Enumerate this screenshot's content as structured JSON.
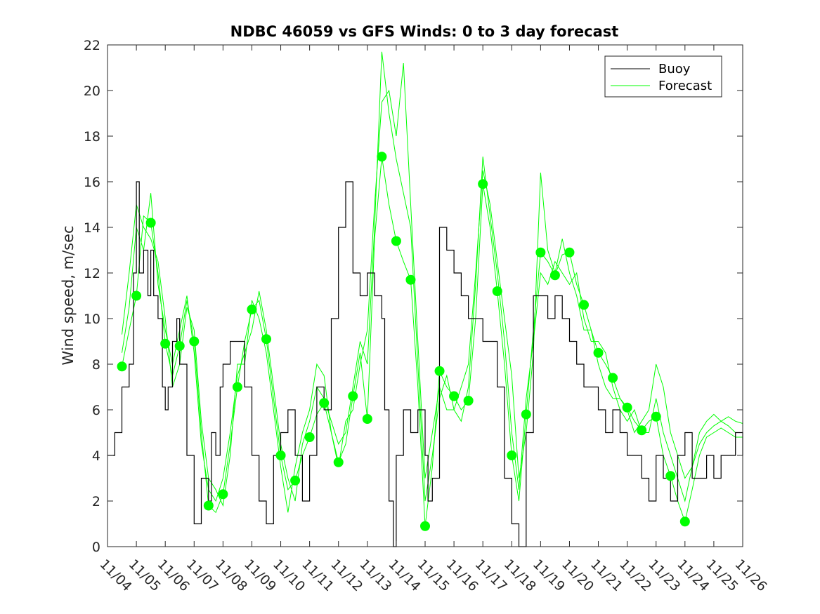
{
  "chart_data": {
    "type": "line",
    "title": "NDBC 46059 vs GFS Winds: 0 to 3 day forecast",
    "xlabel": "",
    "ylabel": "Wind speed, m/sec",
    "xlim": [
      0,
      22
    ],
    "ylim": [
      0,
      22
    ],
    "x_tick_labels": [
      "11/04",
      "11/05",
      "11/06",
      "11/07",
      "11/08",
      "11/09",
      "11/10",
      "11/11",
      "11/12",
      "11/13",
      "11/14",
      "11/15",
      "11/16",
      "11/17",
      "11/18",
      "11/19",
      "11/20",
      "11/21",
      "11/22",
      "11/23",
      "11/24",
      "11/25",
      "11/26"
    ],
    "y_ticks": [
      0,
      2,
      4,
      6,
      8,
      10,
      12,
      14,
      16,
      18,
      20,
      22
    ],
    "legend": {
      "position": "top-right",
      "entries": [
        "Buoy",
        "Forecast"
      ]
    },
    "colors": {
      "buoy": "#000000",
      "forecast": "#00ff00",
      "axis": "#262626"
    },
    "series": [
      {
        "name": "Buoy",
        "color": "#000000",
        "x": [
          0.0,
          0.25,
          0.5,
          0.75,
          0.9,
          1.0,
          1.1,
          1.25,
          1.4,
          1.5,
          1.6,
          1.75,
          1.9,
          2.0,
          2.1,
          2.25,
          2.4,
          2.5,
          2.75,
          3.0,
          3.25,
          3.5,
          3.6,
          3.75,
          3.9,
          4.0,
          4.25,
          4.5,
          4.75,
          5.0,
          5.25,
          5.5,
          5.75,
          6.0,
          6.25,
          6.5,
          6.75,
          7.0,
          7.25,
          7.5,
          7.75,
          8.0,
          8.25,
          8.5,
          8.75,
          9.0,
          9.25,
          9.5,
          9.6,
          9.75,
          9.9,
          10.0,
          10.25,
          10.5,
          10.75,
          11.0,
          11.1,
          11.25,
          11.5,
          11.75,
          12.0,
          12.25,
          12.5,
          12.75,
          13.0,
          13.25,
          13.5,
          13.75,
          14.0,
          14.25,
          14.5,
          14.75,
          15.0,
          15.25,
          15.5,
          15.75,
          16.0,
          16.25,
          16.5,
          16.75,
          17.0,
          17.25,
          17.5,
          17.75,
          18.0,
          18.25,
          18.5,
          18.75,
          19.0,
          19.25,
          19.5,
          19.75,
          20.0,
          20.25,
          20.5,
          20.75,
          21.0,
          21.25,
          21.5,
          21.75,
          22.0
        ],
        "y": [
          4,
          5,
          7,
          8,
          12,
          16,
          12,
          13,
          11,
          13,
          11,
          10,
          7,
          6,
          7,
          9,
          10,
          8,
          4,
          1,
          3,
          2,
          5,
          4,
          7,
          8,
          9,
          9,
          7,
          4,
          2,
          1,
          4,
          5,
          6,
          4,
          2,
          4,
          7,
          6,
          10,
          14,
          16,
          12,
          11,
          12,
          11,
          10,
          6,
          2,
          0,
          4,
          6,
          5,
          6,
          4,
          2,
          3,
          14,
          13,
          12,
          11,
          10,
          10,
          9,
          9,
          7,
          3,
          1,
          0,
          5,
          11,
          11,
          10,
          11,
          10,
          9,
          8,
          7,
          7,
          6,
          5,
          6,
          5,
          4,
          4,
          3,
          2,
          4,
          3,
          2,
          4,
          5,
          3,
          3,
          4,
          3,
          4,
          4,
          5,
          4
        ]
      },
      {
        "name": "Forecast",
        "color": "#00ff00",
        "markers": [
          {
            "x": 0.5,
            "y": 7.9
          },
          {
            "x": 1.0,
            "y": 11.0
          },
          {
            "x": 1.5,
            "y": 14.2
          },
          {
            "x": 2.0,
            "y": 8.9
          },
          {
            "x": 2.5,
            "y": 8.8
          },
          {
            "x": 3.0,
            "y": 9.0
          },
          {
            "x": 3.5,
            "y": 1.8
          },
          {
            "x": 4.0,
            "y": 2.3
          },
          {
            "x": 4.5,
            "y": 7.0
          },
          {
            "x": 5.0,
            "y": 10.4
          },
          {
            "x": 5.5,
            "y": 9.1
          },
          {
            "x": 6.0,
            "y": 4.0
          },
          {
            "x": 6.5,
            "y": 2.9
          },
          {
            "x": 7.0,
            "y": 4.8
          },
          {
            "x": 7.5,
            "y": 6.3
          },
          {
            "x": 8.0,
            "y": 3.7
          },
          {
            "x": 8.5,
            "y": 6.6
          },
          {
            "x": 9.0,
            "y": 5.6
          },
          {
            "x": 9.5,
            "y": 17.1
          },
          {
            "x": 10.0,
            "y": 13.4
          },
          {
            "x": 10.5,
            "y": 11.7
          },
          {
            "x": 11.0,
            "y": 0.9
          },
          {
            "x": 11.5,
            "y": 7.7
          },
          {
            "x": 12.0,
            "y": 6.6
          },
          {
            "x": 12.5,
            "y": 6.4
          },
          {
            "x": 13.0,
            "y": 15.9
          },
          {
            "x": 13.5,
            "y": 11.2
          },
          {
            "x": 14.0,
            "y": 4.0
          },
          {
            "x": 14.5,
            "y": 5.8
          },
          {
            "x": 15.0,
            "y": 12.9
          },
          {
            "x": 15.5,
            "y": 11.9
          },
          {
            "x": 16.0,
            "y": 12.9
          },
          {
            "x": 16.5,
            "y": 10.6
          },
          {
            "x": 17.0,
            "y": 8.5
          },
          {
            "x": 17.5,
            "y": 7.4
          },
          {
            "x": 18.0,
            "y": 6.1
          },
          {
            "x": 18.5,
            "y": 5.1
          },
          {
            "x": 19.0,
            "y": 5.7
          },
          {
            "x": 19.5,
            "y": 3.1
          },
          {
            "x": 20.0,
            "y": 1.1
          }
        ],
        "runs": [
          {
            "x": [
              0.5,
              0.75,
              1.0,
              1.25,
              1.5,
              1.75,
              2.0,
              2.25,
              2.5,
              2.75,
              3.0,
              3.25,
              3.5,
              3.75,
              4.0,
              4.25,
              4.5,
              4.75,
              5.0,
              5.25,
              5.5,
              5.75,
              6.0,
              6.25,
              6.5,
              6.75,
              7.0,
              7.25,
              7.5,
              7.75,
              8.0,
              8.25,
              8.5,
              8.75,
              9.0,
              9.25,
              9.5,
              9.75,
              10.0,
              10.25,
              10.5,
              10.75,
              11.0,
              11.25,
              11.5,
              11.75,
              12.0,
              12.25,
              12.5,
              12.75,
              13.0,
              13.25,
              13.5,
              13.75,
              14.0,
              14.25,
              14.5,
              14.75,
              15.0,
              15.25,
              15.5,
              15.75,
              16.0,
              16.25,
              16.5,
              16.75,
              17.0,
              17.25,
              17.5,
              17.75,
              18.0,
              18.25,
              18.5,
              18.75,
              19.0,
              19.25,
              19.5,
              19.75,
              20.0,
              20.25,
              20.5,
              20.75,
              21.0,
              21.25,
              21.5,
              21.75,
              22.0
            ],
            "y": [
              7.9,
              9.5,
              11.0,
              14.5,
              14.2,
              12.0,
              8.9,
              7.5,
              8.8,
              10.8,
              9.0,
              5.0,
              1.8,
              1.5,
              2.3,
              4.5,
              7.0,
              9.0,
              10.4,
              10.8,
              9.1,
              6.5,
              4.0,
              2.5,
              2.9,
              4.0,
              4.8,
              5.8,
              6.3,
              5.0,
              3.7,
              4.5,
              6.6,
              8.5,
              5.6,
              13.5,
              17.1,
              15.0,
              13.4,
              12.5,
              11.7,
              7.0,
              0.9,
              3.5,
              7.7,
              7.0,
              6.6,
              6.0,
              6.4,
              10.0,
              15.9,
              14.0,
              11.2,
              8.0,
              4.0,
              2.0,
              5.8,
              9.5,
              12.9,
              12.5,
              11.9,
              12.8,
              12.9,
              11.5,
              10.6,
              9.5,
              8.5,
              8.0,
              7.4,
              6.5,
              6.1,
              5.5,
              5.1,
              5.5,
              5.7,
              4.0,
              3.1,
              2.0,
              1.1,
              2.5,
              4.0,
              4.8,
              5.0,
              5.2,
              5.0,
              4.8,
              4.8
            ]
          },
          {
            "x": [
              0.5,
              0.75,
              1.0,
              1.25,
              1.5,
              1.75,
              2.0,
              2.25,
              2.5,
              2.75,
              3.0,
              3.25,
              3.5,
              3.75,
              4.0,
              4.25,
              4.5,
              4.75,
              5.0,
              5.25,
              5.5,
              5.75,
              6.0,
              6.25,
              6.5,
              6.75,
              7.0,
              7.25,
              7.5,
              7.75,
              8.0,
              8.25,
              8.5,
              8.75,
              9.0,
              9.25,
              9.5,
              9.75,
              10.0,
              10.25,
              10.5,
              10.75,
              11.0,
              11.25,
              11.5,
              11.75,
              12.0,
              12.25,
              12.5,
              12.75,
              13.0,
              13.25,
              13.5,
              13.75,
              14.0,
              14.25,
              14.5,
              14.75,
              15.0,
              15.25,
              15.5,
              15.75,
              16.0,
              16.25,
              16.5,
              16.75,
              17.0,
              17.25,
              17.5,
              17.75,
              18.0,
              18.25,
              18.5,
              18.75,
              19.0,
              19.25,
              19.5,
              19.75,
              20.0,
              20.25,
              20.5,
              20.75,
              21.0,
              21.25,
              21.5,
              21.75,
              22.0
            ],
            "y": [
              8.5,
              10.5,
              14.0,
              13.0,
              15.5,
              11.5,
              9.5,
              8.0,
              9.5,
              11.0,
              8.5,
              4.5,
              2.5,
              2.0,
              3.0,
              5.0,
              7.5,
              8.5,
              9.5,
              11.2,
              9.5,
              7.0,
              4.5,
              3.0,
              2.0,
              4.5,
              5.5,
              7.0,
              6.5,
              5.5,
              4.5,
              5.0,
              7.0,
              9.0,
              8.0,
              14.0,
              21.7,
              19.0,
              17.0,
              15.5,
              14.0,
              8.0,
              2.0,
              4.0,
              6.5,
              7.5,
              6.0,
              5.5,
              7.0,
              11.5,
              17.1,
              14.5,
              12.0,
              9.0,
              5.0,
              2.5,
              6.5,
              9.0,
              12.0,
              11.5,
              12.5,
              12.0,
              11.5,
              12.0,
              10.0,
              9.0,
              9.0,
              8.5,
              7.0,
              6.0,
              5.5,
              6.0,
              5.0,
              5.0,
              6.5,
              5.0,
              4.0,
              3.0,
              2.0,
              3.5,
              5.0,
              5.5,
              5.8,
              5.5,
              5.3,
              5.0,
              5.0
            ]
          },
          {
            "x": [
              0.5,
              0.75,
              1.0,
              1.25,
              1.5,
              1.75,
              2.0,
              2.25,
              2.5,
              2.75,
              3.0,
              3.25,
              3.5,
              3.75,
              4.0,
              4.25,
              4.5,
              4.75,
              5.0,
              5.25,
              5.5,
              5.75,
              6.0,
              6.25,
              6.5,
              6.75,
              7.0,
              7.25,
              7.5,
              7.75,
              8.0,
              8.25,
              8.5,
              8.75,
              9.0,
              9.25,
              9.5,
              9.75,
              10.0,
              10.25,
              10.5,
              10.75,
              11.0,
              11.25,
              11.5,
              11.75,
              12.0,
              12.25,
              12.5,
              12.75,
              13.0,
              13.25,
              13.5,
              13.75,
              14.0,
              14.25,
              14.5,
              14.75,
              15.0,
              15.25,
              15.5,
              15.75,
              16.0,
              16.25,
              16.5,
              16.75,
              17.0,
              17.25,
              17.5,
              17.75,
              18.0,
              18.25,
              18.5,
              18.75,
              19.0,
              19.25,
              19.5,
              19.75,
              20.0,
              20.25,
              20.5,
              20.75,
              21.0,
              21.25,
              21.5,
              21.75,
              22.0
            ],
            "y": [
              9.3,
              12.0,
              15.0,
              14.0,
              13.5,
              12.5,
              10.0,
              7.0,
              8.0,
              10.5,
              9.5,
              5.5,
              3.0,
              2.5,
              1.8,
              4.0,
              8.0,
              8.0,
              10.8,
              10.0,
              8.5,
              6.0,
              3.5,
              1.5,
              3.5,
              5.0,
              6.0,
              8.0,
              7.5,
              5.0,
              3.5,
              5.5,
              6.0,
              8.0,
              9.5,
              15.0,
              19.5,
              20.0,
              18.0,
              21.2,
              15.0,
              9.0,
              3.0,
              5.0,
              7.0,
              6.0,
              6.0,
              7.0,
              8.0,
              12.0,
              16.5,
              15.0,
              12.5,
              10.0,
              7.5,
              3.0,
              5.0,
              8.5,
              16.4,
              13.0,
              12.0,
              13.5,
              12.0,
              11.0,
              9.5,
              9.5,
              8.0,
              7.0,
              6.5,
              6.5,
              6.0,
              5.0,
              5.5,
              6.0,
              8.0,
              7.0,
              5.0,
              4.0,
              3.0,
              3.5,
              4.5,
              5.0,
              5.3,
              5.5,
              5.7,
              5.5,
              5.4
            ]
          }
        ]
      }
    ]
  }
}
